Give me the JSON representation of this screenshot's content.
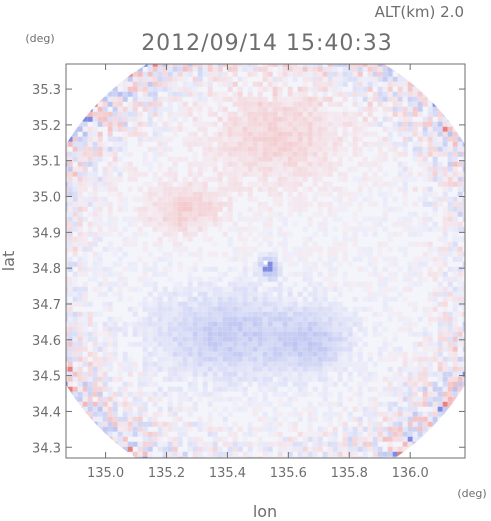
{
  "chart_data": {
    "type": "heatmap",
    "title": "2012/09/14 15:40:33",
    "subtitle": "ALT(km) 2.0",
    "xlabel": "lon",
    "ylabel": "lat",
    "xunit": "(deg)",
    "yunit": "(deg)",
    "xlim": [
      134.87,
      136.18
    ],
    "ylim": [
      34.27,
      35.37
    ],
    "xticks": [
      135.0,
      135.2,
      135.4,
      135.6,
      135.8,
      136.0
    ],
    "xtick_labels": [
      "135.0",
      "135.2",
      "135.4",
      "135.6",
      "135.8",
      "136.0"
    ],
    "yticks": [
      34.3,
      34.4,
      34.5,
      34.6,
      34.7,
      34.8,
      34.9,
      35.0,
      35.1,
      35.2,
      35.3
    ],
    "ytick_labels": [
      "34.3",
      "34.4",
      "34.5",
      "34.6",
      "34.7",
      "34.8",
      "34.9",
      "35.0",
      "35.1",
      "35.2",
      "35.3"
    ],
    "domain": {
      "center": [
        135.525,
        34.81
      ],
      "radius_deg": 0.65
    },
    "colors": {
      "positive": "#f4b6b6",
      "negative": "#b6bff0",
      "noise_pos": "#e88080",
      "noise_neg": "#7f8be0",
      "axis": "#6e6e6e"
    },
    "regions": [
      {
        "sign": "positive",
        "center": [
          135.55,
          35.18
        ],
        "extent": [
          0.22,
          0.14
        ],
        "level": 0.35
      },
      {
        "sign": "positive",
        "center": [
          135.25,
          34.97
        ],
        "extent": [
          0.12,
          0.07
        ],
        "level": 0.4
      },
      {
        "sign": "negative",
        "center": [
          135.4,
          34.62
        ],
        "extent": [
          0.25,
          0.12
        ],
        "level": 0.5
      },
      {
        "sign": "negative",
        "center": [
          135.68,
          34.6
        ],
        "extent": [
          0.12,
          0.08
        ],
        "level": 0.4
      },
      {
        "sign": "negative",
        "center": [
          135.53,
          34.81
        ],
        "extent": [
          0.03,
          0.03
        ],
        "level": 0.8
      }
    ],
    "edge_noise": "speckled red/blue values near domain edge, quiet interior"
  }
}
